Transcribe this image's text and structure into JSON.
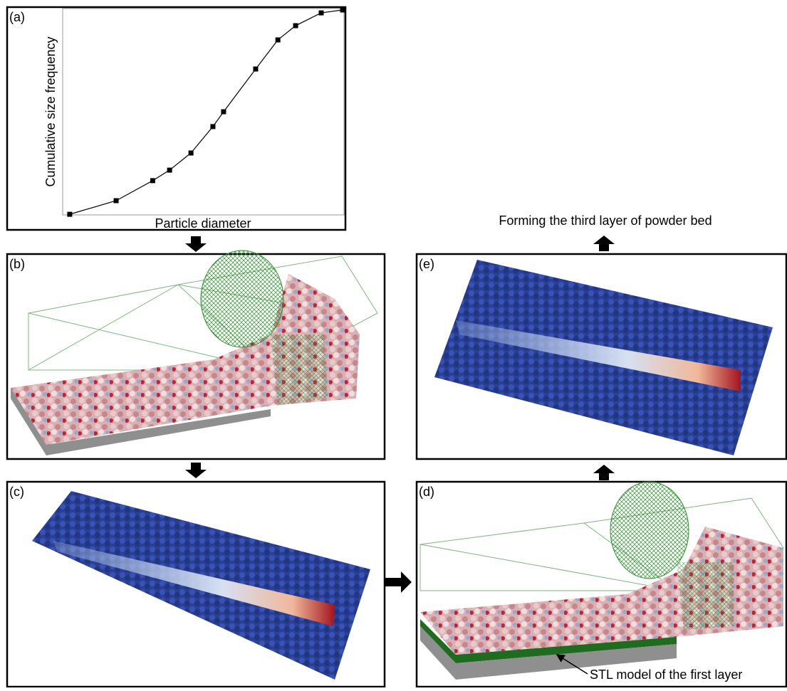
{
  "chart_data": {
    "type": "line",
    "x_label": "Particle diameter",
    "y_label": "Cumulative size frequency",
    "x": [
      2.5,
      19,
      32,
      38,
      45.6,
      53.4,
      57.2,
      68.6,
      76.5,
      82.8,
      91.9,
      99.5
    ],
    "values": [
      0.3,
      6.9,
      16.6,
      21.7,
      30,
      42.8,
      50,
      70.7,
      84.8,
      91.7,
      97.9,
      99.3
    ],
    "xlim": [
      0,
      100
    ],
    "ylim": [
      0,
      100
    ],
    "color": "#000000"
  },
  "panels": [
    {
      "label": "(a)"
    },
    {
      "label": "(b)"
    },
    {
      "label": "(c)"
    },
    {
      "label": "(d)"
    },
    {
      "label": "(e)"
    }
  ],
  "annotations": {
    "next_step": "Forming the third layer of powder bed",
    "stl": "STL model of the first layer"
  }
}
